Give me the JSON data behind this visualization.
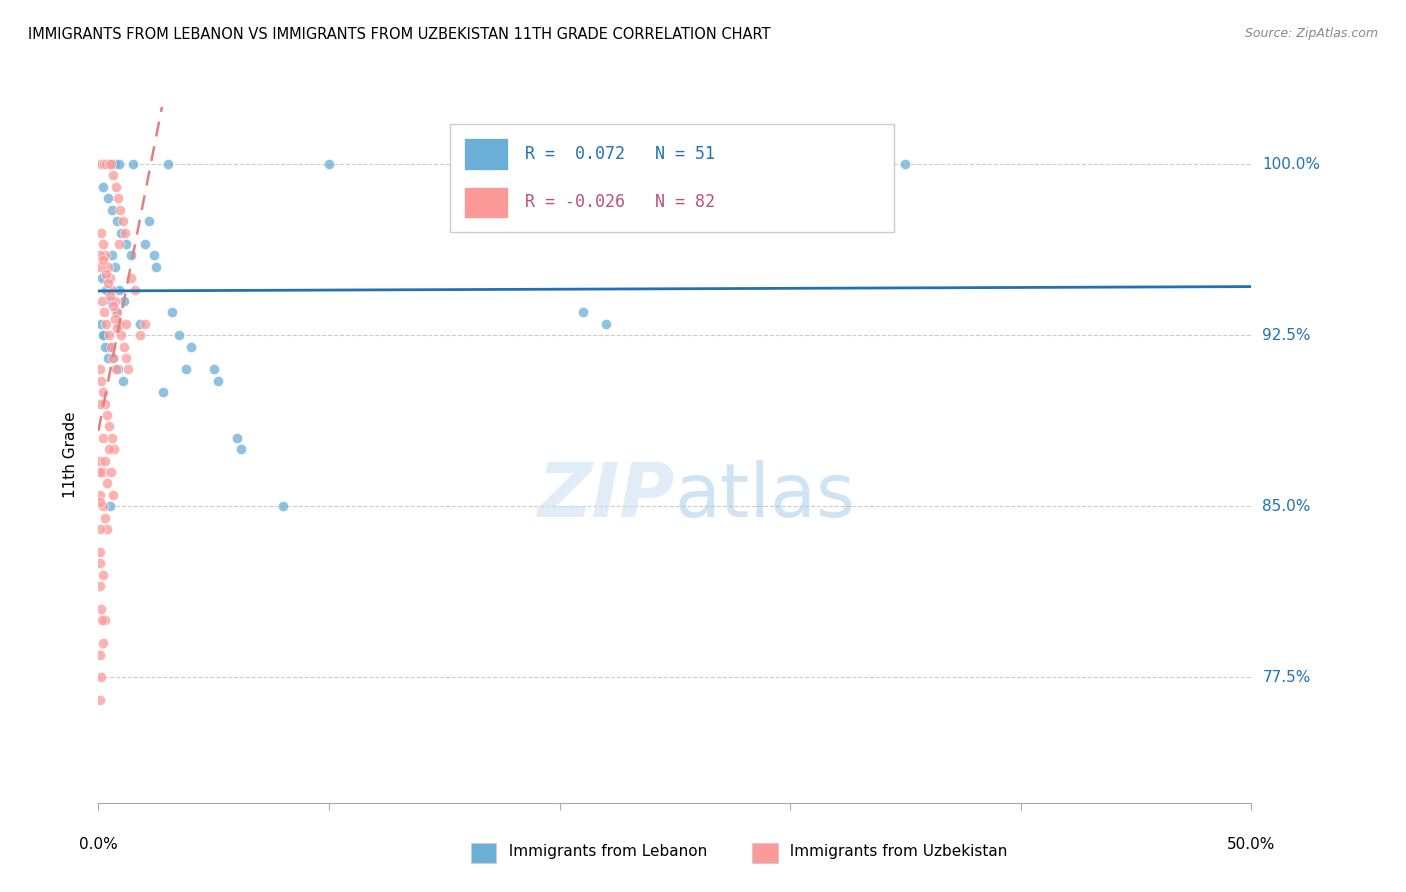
{
  "title": "IMMIGRANTS FROM LEBANON VS IMMIGRANTS FROM UZBEKISTAN 11TH GRADE CORRELATION CHART",
  "source": "Source: ZipAtlas.com",
  "ylabel": "11th Grade",
  "yticks": [
    77.5,
    85.0,
    92.5,
    100.0
  ],
  "xlim": [
    0.0,
    50.0
  ],
  "ylim": [
    72.0,
    102.5
  ],
  "legend_label_blue": "Immigrants from Lebanon",
  "legend_label_pink": "Immigrants from Uzbekistan",
  "R_blue": 0.072,
  "N_blue": 51,
  "R_pink": -0.026,
  "N_pink": 82,
  "blue_color": "#6baed6",
  "pink_color": "#fb9a99",
  "blue_line_color": "#2171b5",
  "pink_line_color": "#e08080",
  "watermark_zip": "ZIP",
  "watermark_atlas": "atlas",
  "blue_scatter": [
    [
      0.1,
      100.0
    ],
    [
      0.3,
      100.0
    ],
    [
      0.5,
      100.0
    ],
    [
      0.7,
      100.0
    ],
    [
      0.9,
      100.0
    ],
    [
      1.5,
      100.0
    ],
    [
      3.0,
      100.0
    ],
    [
      0.2,
      99.0
    ],
    [
      0.4,
      98.5
    ],
    [
      0.6,
      98.0
    ],
    [
      0.8,
      97.5
    ],
    [
      1.0,
      97.0
    ],
    [
      1.2,
      96.5
    ],
    [
      1.4,
      96.0
    ],
    [
      2.0,
      96.5
    ],
    [
      2.5,
      95.5
    ],
    [
      0.15,
      95.0
    ],
    [
      0.35,
      94.5
    ],
    [
      0.55,
      94.0
    ],
    [
      0.75,
      93.5
    ],
    [
      1.8,
      93.0
    ],
    [
      0.25,
      92.5
    ],
    [
      0.45,
      92.0
    ],
    [
      3.5,
      92.5
    ],
    [
      4.0,
      92.0
    ],
    [
      0.65,
      91.5
    ],
    [
      0.85,
      91.0
    ],
    [
      1.05,
      90.5
    ],
    [
      2.8,
      90.0
    ],
    [
      5.0,
      91.0
    ],
    [
      5.2,
      90.5
    ],
    [
      6.0,
      88.0
    ],
    [
      6.2,
      87.5
    ],
    [
      8.0,
      85.0
    ],
    [
      0.5,
      85.0
    ],
    [
      10.0,
      100.0
    ],
    [
      22.0,
      93.0
    ],
    [
      21.0,
      93.5
    ],
    [
      35.0,
      100.0
    ],
    [
      0.1,
      93.0
    ],
    [
      0.2,
      92.5
    ],
    [
      0.3,
      92.0
    ],
    [
      0.4,
      91.5
    ],
    [
      0.6,
      96.0
    ],
    [
      0.7,
      95.5
    ],
    [
      0.9,
      94.5
    ],
    [
      1.1,
      94.0
    ],
    [
      2.2,
      97.5
    ],
    [
      2.4,
      96.0
    ],
    [
      3.2,
      93.5
    ],
    [
      3.8,
      91.0
    ]
  ],
  "pink_scatter": [
    [
      0.05,
      100.0
    ],
    [
      0.15,
      100.0
    ],
    [
      0.25,
      100.0
    ],
    [
      0.35,
      100.0
    ],
    [
      0.45,
      100.0
    ],
    [
      0.55,
      100.0
    ],
    [
      0.65,
      99.5
    ],
    [
      0.75,
      99.0
    ],
    [
      0.85,
      98.5
    ],
    [
      0.95,
      98.0
    ],
    [
      1.05,
      97.5
    ],
    [
      1.15,
      97.0
    ],
    [
      0.1,
      97.0
    ],
    [
      0.2,
      96.5
    ],
    [
      0.3,
      96.0
    ],
    [
      0.4,
      95.5
    ],
    [
      0.5,
      95.0
    ],
    [
      0.6,
      94.5
    ],
    [
      0.7,
      94.0
    ],
    [
      0.8,
      93.5
    ],
    [
      0.9,
      93.0
    ],
    [
      1.0,
      92.5
    ],
    [
      1.1,
      92.0
    ],
    [
      1.2,
      91.5
    ],
    [
      1.3,
      91.0
    ],
    [
      0.15,
      94.0
    ],
    [
      0.25,
      93.5
    ],
    [
      0.35,
      93.0
    ],
    [
      0.45,
      92.5
    ],
    [
      0.55,
      92.0
    ],
    [
      0.65,
      91.5
    ],
    [
      0.75,
      91.0
    ],
    [
      0.05,
      91.0
    ],
    [
      0.12,
      90.5
    ],
    [
      0.18,
      90.0
    ],
    [
      0.28,
      89.5
    ],
    [
      0.38,
      89.0
    ],
    [
      0.48,
      88.5
    ],
    [
      0.58,
      88.0
    ],
    [
      0.68,
      87.5
    ],
    [
      0.08,
      87.0
    ],
    [
      0.18,
      86.5
    ],
    [
      0.08,
      85.5
    ],
    [
      0.18,
      85.0
    ],
    [
      0.28,
      84.5
    ],
    [
      0.38,
      84.0
    ],
    [
      1.4,
      95.0
    ],
    [
      1.6,
      94.5
    ],
    [
      2.0,
      93.0
    ],
    [
      0.08,
      83.0
    ],
    [
      0.18,
      82.0
    ],
    [
      0.28,
      80.0
    ],
    [
      0.05,
      95.5
    ],
    [
      0.05,
      86.5
    ],
    [
      0.05,
      85.2
    ],
    [
      0.05,
      84.0
    ],
    [
      0.05,
      78.5
    ],
    [
      0.12,
      80.5
    ],
    [
      0.9,
      96.5
    ],
    [
      1.2,
      93.0
    ],
    [
      0.08,
      96.0
    ],
    [
      0.22,
      95.8
    ],
    [
      0.32,
      95.2
    ],
    [
      0.42,
      94.8
    ],
    [
      0.52,
      94.2
    ],
    [
      0.62,
      93.8
    ],
    [
      0.72,
      93.2
    ],
    [
      0.82,
      92.8
    ],
    [
      0.05,
      82.5
    ],
    [
      0.08,
      81.5
    ],
    [
      0.15,
      80.0
    ],
    [
      0.22,
      79.0
    ],
    [
      1.8,
      92.5
    ],
    [
      0.45,
      87.5
    ],
    [
      0.55,
      86.5
    ],
    [
      0.65,
      85.5
    ],
    [
      0.05,
      76.5
    ],
    [
      0.1,
      77.5
    ],
    [
      0.08,
      89.5
    ],
    [
      0.18,
      88.0
    ],
    [
      0.28,
      87.0
    ],
    [
      0.38,
      86.0
    ]
  ]
}
